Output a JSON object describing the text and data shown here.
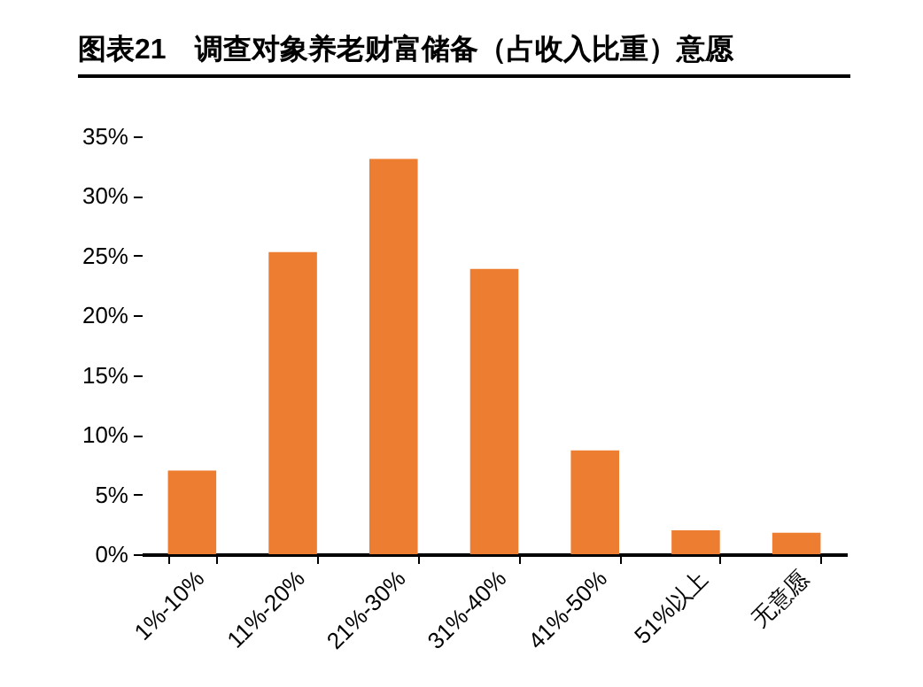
{
  "chart_data": {
    "type": "bar",
    "title": "图表21　调查对象养老财富储备（占收入比重）意愿",
    "categories": [
      "1%-10%",
      "11%-20%",
      "21%-30%",
      "31%-40%",
      "41%-50%",
      "51%以上",
      "无意愿"
    ],
    "values": [
      7.0,
      25.3,
      33.1,
      23.9,
      8.7,
      2.0,
      1.8
    ],
    "color": "#ed7d31",
    "ylim": [
      0,
      35
    ],
    "yticks": [
      {
        "value": 0,
        "label": "0%"
      },
      {
        "value": 5,
        "label": "5%"
      },
      {
        "value": 10,
        "label": "10%"
      },
      {
        "value": 15,
        "label": "15%"
      },
      {
        "value": 20,
        "label": "20%"
      },
      {
        "value": 25,
        "label": "25%"
      },
      {
        "value": 30,
        "label": "30%"
      },
      {
        "value": 35,
        "label": "35%"
      }
    ],
    "grid": false
  }
}
